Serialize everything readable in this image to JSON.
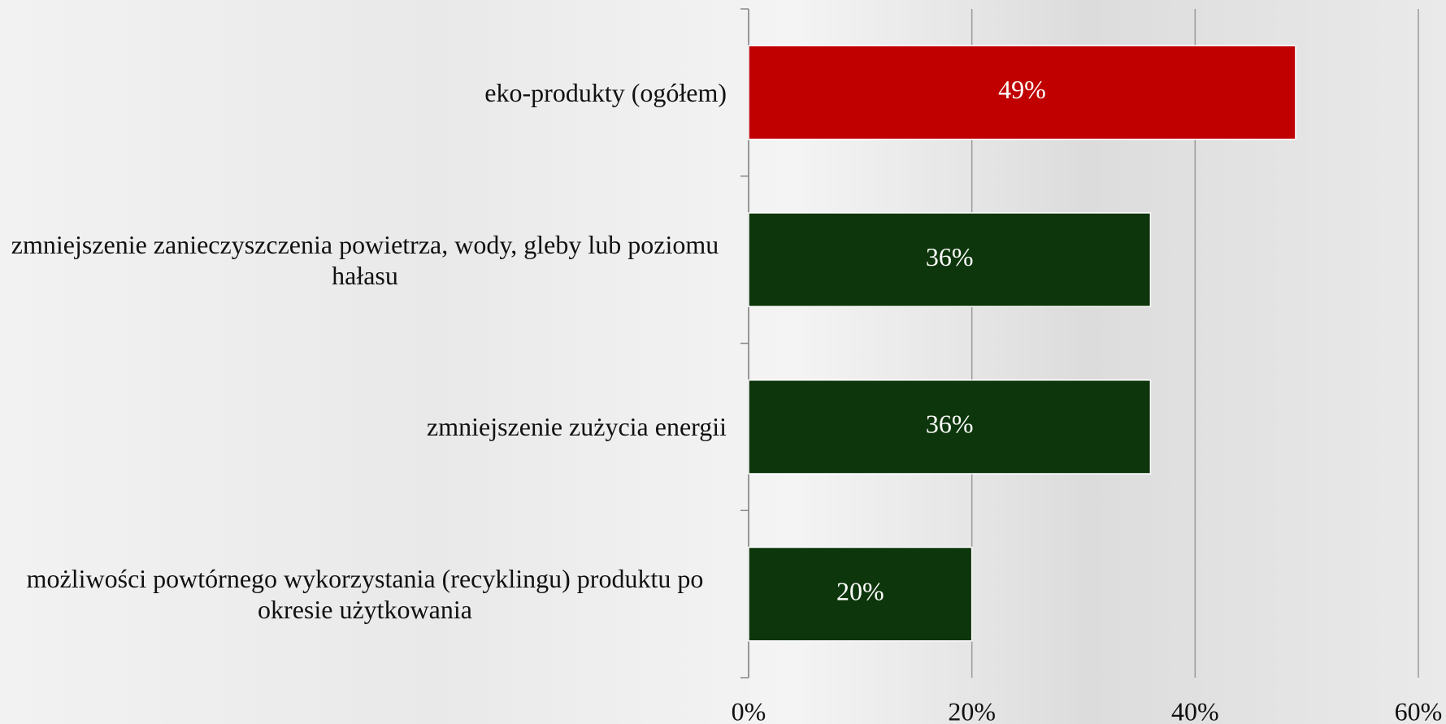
{
  "chart_data": {
    "type": "barh",
    "categories": [
      "eko-produkty (ogółem)",
      "zmniejszenie zanieczyszczenia powietrza, wody, gleby lub poziomu hałasu",
      "zmniejszenie zużycia energii",
      "możliwości powtórnego wykorzystania (recyklingu) produktu po okresie użytkowania"
    ],
    "values": [
      49,
      36,
      36,
      20
    ],
    "value_labels": [
      "49%",
      "36%",
      "36%",
      "20%"
    ],
    "colors": [
      "#c00000",
      "#0e360c",
      "#0e360c",
      "#0e360c"
    ],
    "xlim": [
      0,
      60
    ],
    "xticks": [
      {
        "value": 0,
        "label": "0%"
      },
      {
        "value": 20,
        "label": "20%"
      },
      {
        "value": 40,
        "label": "40%"
      },
      {
        "value": 60,
        "label": "60%"
      }
    ],
    "grid": true
  }
}
